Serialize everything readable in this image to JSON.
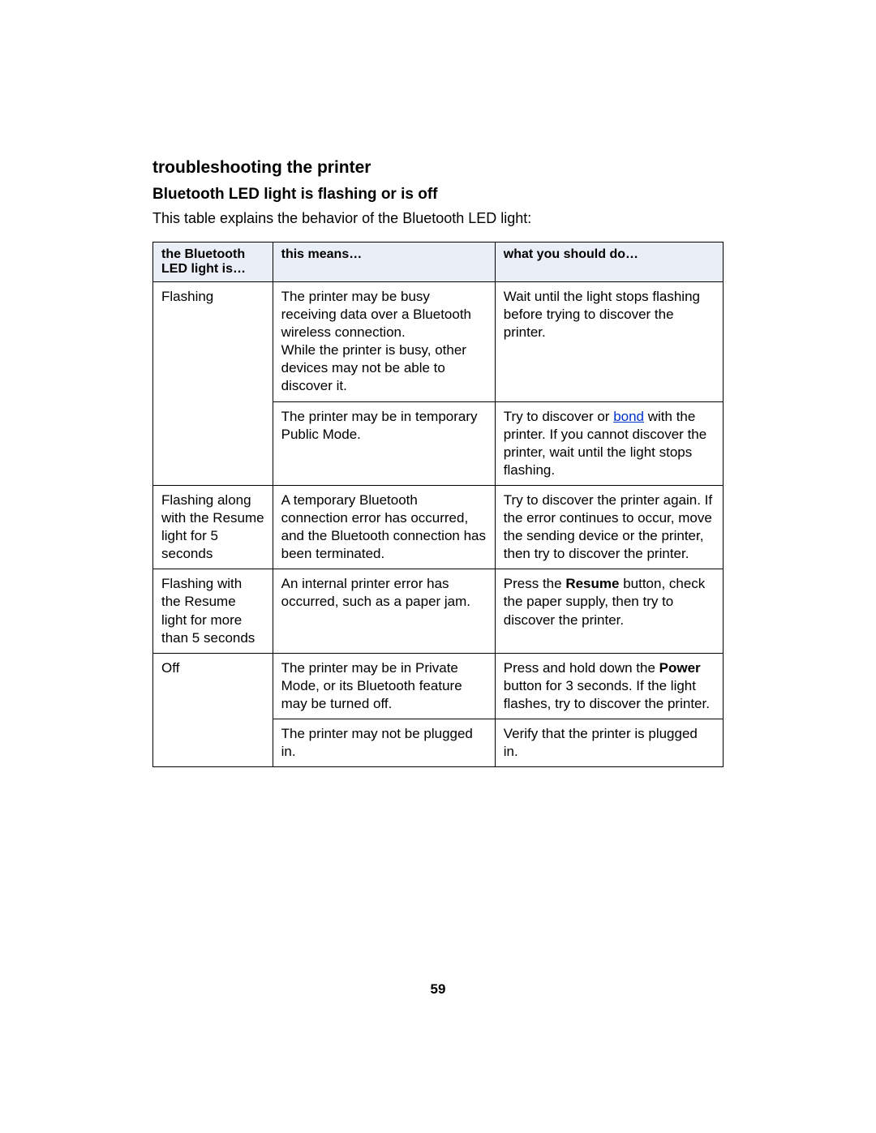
{
  "section_heading": "troubleshooting the printer",
  "sub_heading": "Bluetooth LED light is flashing or is off",
  "intro": "This table explains the behavior of the Bluetooth LED light:",
  "table": {
    "header": {
      "col1": "the Bluetooth LED light is…",
      "col2": "this means…",
      "col3": "what you should do…"
    },
    "rows": {
      "r1": {
        "led": "Flashing",
        "means": "The printer may be busy receiving data over a Bluetooth wireless connection.\nWhile the printer is busy, other devices may not be able to discover it.",
        "action": "Wait until the light stops flashing before trying to discover the printer."
      },
      "r2": {
        "means": "The printer may be in temporary Public Mode.",
        "action_pre": "Try to discover or ",
        "action_link": "bond",
        "action_post": " with the printer. If you cannot discover the printer, wait until the light stops flashing."
      },
      "r3": {
        "led": "Flashing along with the Resume light for 5 seconds",
        "means": "A temporary Bluetooth connection error has occurred, and the Bluetooth connection has been terminated.",
        "action": "Try to discover the printer again. If the error continues to occur, move the sending device or the printer, then try to discover the printer."
      },
      "r4": {
        "led": "Flashing with the Resume light for more than 5 seconds",
        "means": "An internal printer error has occurred, such as a paper jam.",
        "action_pre": "Press the ",
        "action_bold": "Resume",
        "action_post": " button, check the paper supply, then try to discover the printer."
      },
      "r5": {
        "led": "Off",
        "means": "The printer may be in Private Mode, or its Bluetooth feature may be turned off.",
        "action_pre": "Press and hold down the ",
        "action_bold": "Power",
        "action_post": " button for 3 seconds. If the light flashes, try to discover the printer."
      },
      "r6": {
        "means": "The printer may not be plugged in.",
        "action": "Verify that the printer is plugged in."
      }
    }
  },
  "page_number": "59"
}
